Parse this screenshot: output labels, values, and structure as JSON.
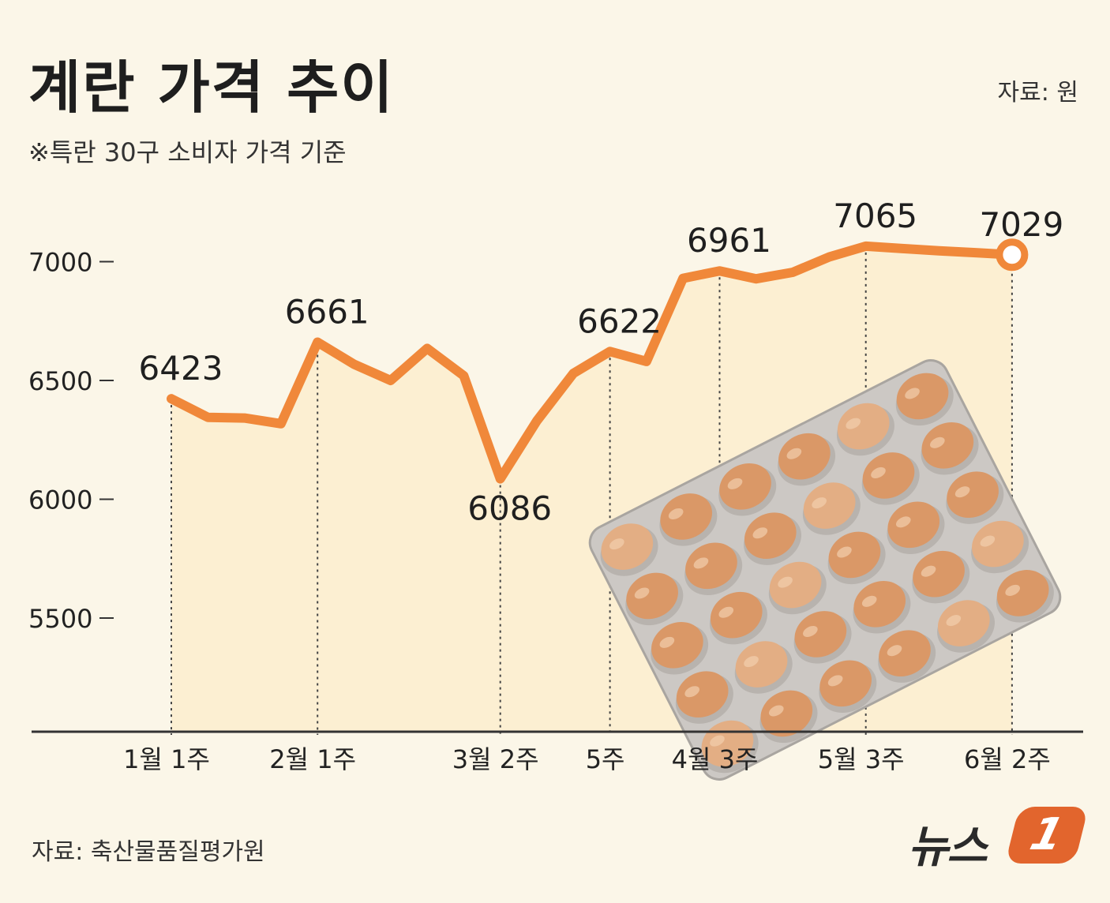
{
  "chart_data": {
    "type": "line",
    "title": "계란 가격 추이",
    "subtitle": "※특란 30구 소비자 가격 기준",
    "unit_label": "자료: 원",
    "source": "자료: 축산물품질평가원",
    "x": [
      0,
      1,
      2,
      3,
      4,
      5,
      6,
      7,
      8,
      9,
      10,
      11,
      12,
      13,
      14,
      15,
      16,
      17,
      18,
      19,
      20,
      21,
      22,
      23
    ],
    "values": [
      6423,
      6345,
      6342,
      6318,
      6661,
      6568,
      6500,
      6635,
      6520,
      6086,
      6330,
      6530,
      6622,
      6580,
      6930,
      6961,
      6928,
      6955,
      7020,
      7065,
      7055,
      7046,
      7038,
      7029
    ],
    "labeled_points": [
      {
        "index": 0,
        "label": "6423",
        "tick": "1월 1주"
      },
      {
        "index": 4,
        "label": "6661",
        "tick": "2월 1주"
      },
      {
        "index": 9,
        "label": "6086",
        "tick": "3월 2주"
      },
      {
        "index": 12,
        "label": "6622",
        "tick": "5주"
      },
      {
        "index": 15,
        "label": "6961",
        "tick": "4월 3주"
      },
      {
        "index": 19,
        "label": "7065",
        "tick": "5월 3주"
      },
      {
        "index": 23,
        "label": "7029",
        "tick": "6월 2주"
      }
    ],
    "y_ticks": [
      {
        "value": 7000,
        "label": "7000"
      },
      {
        "value": 6500,
        "label": "6500"
      },
      {
        "value": 6000,
        "label": "6000"
      },
      {
        "value": 5500,
        "label": "5500"
      }
    ],
    "ylim": [
      5000,
      7100
    ],
    "xlabel": "",
    "ylabel": "",
    "grid": false,
    "colors": {
      "line": "#f0883a",
      "fill": "#fcefd2",
      "text": "#222222",
      "axis": "#333333",
      "marker_fill": "#ffffff"
    }
  },
  "logo": {
    "text": "뉴스",
    "badge": "1"
  }
}
